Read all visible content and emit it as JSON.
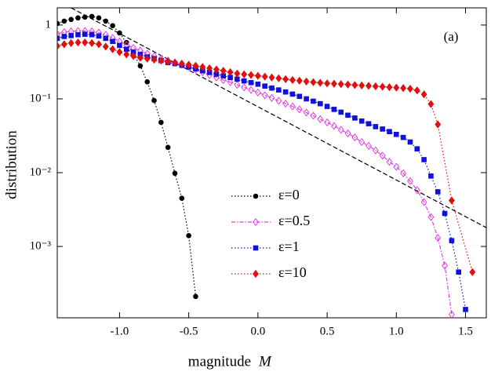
{
  "chart_data": {
    "type": "line",
    "annotation": "(a)",
    "x_label": "magnitude",
    "x_label_symbol": "M",
    "y_label": "distribution",
    "xlim": [
      -1.45,
      1.65
    ],
    "ylim": [
      0.000108,
      1.71
    ],
    "log_y": true,
    "xticks": [
      {
        "value": -1,
        "label": "-1.0"
      },
      -0.5,
      {
        "value": 0,
        "label": "0.0"
      },
      0.5,
      {
        "value": 1,
        "label": "1.0"
      },
      1.5
    ],
    "yticks": [
      {
        "value": 0.001,
        "label": "10⁻³"
      },
      {
        "value": 0.01,
        "label": "10⁻²"
      },
      {
        "value": 0.1,
        "label": "10⁻¹"
      },
      1
    ],
    "series": [
      {
        "name": "ε=0",
        "color": "#000000",
        "marker": "circle",
        "dash": "1.5 2.5",
        "x": [
          -1.45,
          -1.4,
          -1.35,
          -1.3,
          -1.25,
          -1.2,
          -1.15,
          -1.1,
          -1.05,
          -1.0,
          -0.95,
          -0.9,
          -0.85,
          -0.8,
          -0.75,
          -0.7,
          -0.65,
          -0.6,
          -0.55,
          -0.5,
          -0.45
        ],
        "values": [
          1.05,
          1.13,
          1.19,
          1.25,
          1.28,
          1.31,
          1.25,
          1.13,
          0.98,
          0.78,
          0.58,
          0.41,
          0.28,
          0.17,
          0.095,
          0.048,
          0.022,
          0.0098,
          0.0045,
          0.0014,
          0.00021
        ]
      },
      {
        "name": "ε=0.5",
        "color": "#e040e0",
        "marker": "open-diamond",
        "dash": "5 2 1.5 2",
        "x": [
          -1.45,
          -1.4,
          -1.35,
          -1.3,
          -1.25,
          -1.2,
          -1.15,
          -1.1,
          -1.05,
          -1.0,
          -0.95,
          -0.9,
          -0.85,
          -0.8,
          -0.75,
          -0.7,
          -0.65,
          -0.6,
          -0.55,
          -0.5,
          -0.45,
          -0.4,
          -0.35,
          -0.3,
          -0.25,
          -0.2,
          -0.15,
          -0.1,
          -0.05,
          0.0,
          0.05,
          0.1,
          0.15,
          0.2,
          0.25,
          0.3,
          0.35,
          0.4,
          0.45,
          0.5,
          0.55,
          0.6,
          0.65,
          0.7,
          0.75,
          0.8,
          0.85,
          0.9,
          0.95,
          1.0,
          1.05,
          1.1,
          1.15,
          1.2,
          1.25,
          1.3,
          1.35,
          1.4
        ],
        "values": [
          0.76,
          0.8,
          0.82,
          0.83,
          0.83,
          0.82,
          0.79,
          0.74,
          0.67,
          0.6,
          0.54,
          0.49,
          0.45,
          0.41,
          0.38,
          0.35,
          0.33,
          0.31,
          0.29,
          0.27,
          0.25,
          0.23,
          0.21,
          0.195,
          0.18,
          0.168,
          0.155,
          0.143,
          0.132,
          0.122,
          0.112,
          0.103,
          0.094,
          0.086,
          0.079,
          0.072,
          0.065,
          0.059,
          0.053,
          0.048,
          0.043,
          0.038,
          0.034,
          0.03,
          0.026,
          0.023,
          0.02,
          0.017,
          0.014,
          0.012,
          0.0098,
          0.0077,
          0.0058,
          0.004,
          0.0025,
          0.0013,
          0.00055,
          0.00012
        ]
      },
      {
        "name": "ε=1",
        "color": "#1010e0",
        "marker": "square",
        "dash": "1.5 2.5",
        "x": [
          -1.45,
          -1.4,
          -1.35,
          -1.3,
          -1.25,
          -1.2,
          -1.15,
          -1.1,
          -1.05,
          -1.0,
          -0.95,
          -0.9,
          -0.85,
          -0.8,
          -0.75,
          -0.7,
          -0.65,
          -0.6,
          -0.55,
          -0.5,
          -0.45,
          -0.4,
          -0.35,
          -0.3,
          -0.25,
          -0.2,
          -0.15,
          -0.1,
          -0.05,
          0.0,
          0.05,
          0.1,
          0.15,
          0.2,
          0.25,
          0.3,
          0.35,
          0.4,
          0.45,
          0.5,
          0.55,
          0.6,
          0.65,
          0.7,
          0.75,
          0.8,
          0.85,
          0.9,
          0.95,
          1.0,
          1.05,
          1.1,
          1.15,
          1.2,
          1.25,
          1.3,
          1.35,
          1.4,
          1.45,
          1.5
        ],
        "values": [
          0.66,
          0.7,
          0.72,
          0.74,
          0.75,
          0.74,
          0.71,
          0.66,
          0.6,
          0.53,
          0.47,
          0.43,
          0.4,
          0.37,
          0.35,
          0.33,
          0.31,
          0.3,
          0.285,
          0.27,
          0.255,
          0.24,
          0.228,
          0.216,
          0.205,
          0.195,
          0.185,
          0.175,
          0.166,
          0.158,
          0.149,
          0.14,
          0.132,
          0.124,
          0.116,
          0.108,
          0.1,
          0.093,
          0.086,
          0.079,
          0.072,
          0.066,
          0.06,
          0.055,
          0.05,
          0.046,
          0.042,
          0.039,
          0.036,
          0.033,
          0.03,
          0.026,
          0.021,
          0.015,
          0.009,
          0.0055,
          0.0028,
          0.0012,
          0.00045,
          0.00014
        ]
      },
      {
        "name": "ε=10",
        "color": "#e01010",
        "marker": "diamond",
        "dash": "1.5 2.5",
        "x": [
          -1.45,
          -1.4,
          -1.35,
          -1.3,
          -1.25,
          -1.2,
          -1.15,
          -1.1,
          -1.05,
          -1.0,
          -0.95,
          -0.9,
          -0.85,
          -0.8,
          -0.75,
          -0.7,
          -0.65,
          -0.6,
          -0.55,
          -0.5,
          -0.45,
          -0.4,
          -0.35,
          -0.3,
          -0.25,
          -0.2,
          -0.15,
          -0.1,
          -0.05,
          0.0,
          0.05,
          0.1,
          0.15,
          0.2,
          0.25,
          0.3,
          0.35,
          0.4,
          0.45,
          0.5,
          0.55,
          0.6,
          0.65,
          0.7,
          0.75,
          0.8,
          0.85,
          0.9,
          0.95,
          1.0,
          1.05,
          1.1,
          1.15,
          1.2,
          1.25,
          1.3,
          1.4,
          1.55
        ],
        "values": [
          0.52,
          0.55,
          0.57,
          0.58,
          0.58,
          0.57,
          0.55,
          0.51,
          0.47,
          0.43,
          0.4,
          0.38,
          0.36,
          0.35,
          0.34,
          0.33,
          0.32,
          0.31,
          0.3,
          0.29,
          0.28,
          0.27,
          0.26,
          0.25,
          0.24,
          0.23,
          0.22,
          0.215,
          0.21,
          0.205,
          0.2,
          0.195,
          0.19,
          0.185,
          0.18,
          0.176,
          0.172,
          0.168,
          0.165,
          0.162,
          0.16,
          0.158,
          0.156,
          0.154,
          0.152,
          0.15,
          0.148,
          0.146,
          0.144,
          0.142,
          0.14,
          0.137,
          0.13,
          0.115,
          0.085,
          0.045,
          0.0042,
          0.00045
        ]
      }
    ],
    "reference_line": {
      "color": "#000000",
      "x": [
        -1.35,
        1.65
      ],
      "values": [
        1.71,
        0.0018
      ]
    },
    "legend": "inside-center"
  }
}
